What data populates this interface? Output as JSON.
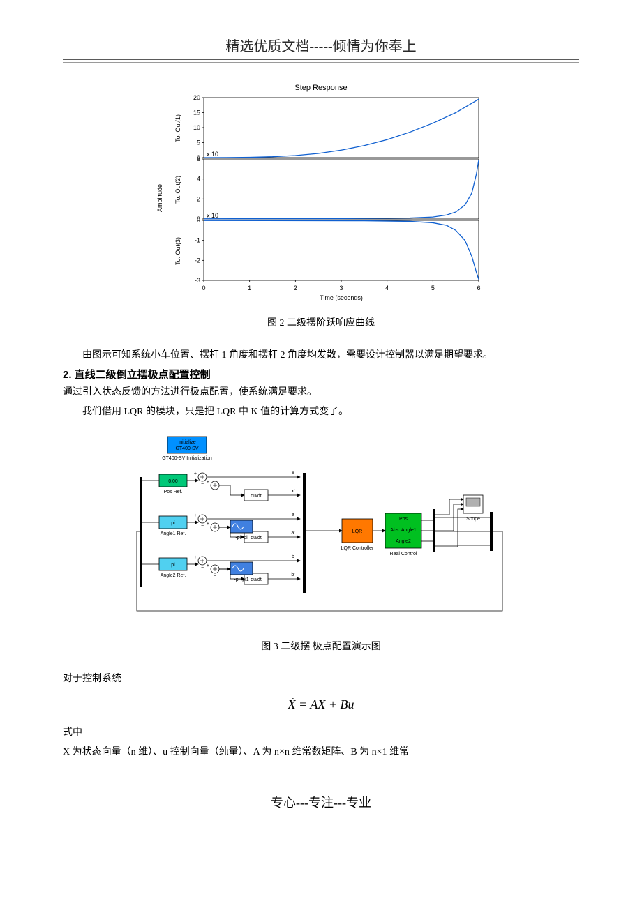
{
  "header": {
    "title": "精选优质文档-----倾情为你奉上"
  },
  "step_response": {
    "title": "Step Response",
    "xlabel": "Time (seconds)",
    "ylabel": "Amplitude",
    "xlim": [
      0,
      6
    ],
    "xticks": [
      0,
      1,
      2,
      3,
      4,
      5,
      6
    ],
    "line_color": "#1060d0",
    "axis_color": "#000000",
    "background_color": "#ffffff",
    "panels": [
      {
        "sublabel": "To: Out(1)",
        "ylim": [
          0,
          20
        ],
        "yticks": [
          0,
          5,
          10,
          15,
          20
        ],
        "exp_note": "x 10",
        "curve": [
          [
            0,
            0
          ],
          [
            0.5,
            0.02
          ],
          [
            1,
            0.1
          ],
          [
            1.5,
            0.3
          ],
          [
            2,
            0.7
          ],
          [
            2.5,
            1.4
          ],
          [
            3,
            2.5
          ],
          [
            3.5,
            4.0
          ],
          [
            4,
            6.0
          ],
          [
            4.5,
            8.5
          ],
          [
            5,
            11.5
          ],
          [
            5.5,
            15
          ],
          [
            6,
            19.5
          ]
        ]
      },
      {
        "sublabel": "To: Out(2)",
        "ylim": [
          0,
          6
        ],
        "yticks": [
          0,
          2,
          4,
          6
        ],
        "exp_note": "x 10",
        "curve": [
          [
            0,
            0.02
          ],
          [
            3.0,
            0.04
          ],
          [
            4.5,
            0.1
          ],
          [
            5.0,
            0.2
          ],
          [
            5.3,
            0.4
          ],
          [
            5.5,
            0.7
          ],
          [
            5.7,
            1.4
          ],
          [
            5.85,
            2.6
          ],
          [
            5.95,
            4.5
          ],
          [
            6,
            5.9
          ]
        ]
      },
      {
        "sublabel": "To: Out(3)",
        "ylim": [
          -3,
          0
        ],
        "yticks": [
          -3,
          -2,
          -1,
          0
        ],
        "curve": [
          [
            0,
            -0.01
          ],
          [
            3.5,
            -0.02
          ],
          [
            4.5,
            -0.05
          ],
          [
            5.0,
            -0.12
          ],
          [
            5.3,
            -0.25
          ],
          [
            5.5,
            -0.5
          ],
          [
            5.7,
            -1.0
          ],
          [
            5.85,
            -1.8
          ],
          [
            5.95,
            -2.6
          ],
          [
            6,
            -2.95
          ]
        ]
      }
    ]
  },
  "captions": {
    "fig2": "图 2 二级摆阶跃响应曲线",
    "fig3": "图 3 二级摆 极点配置演示图"
  },
  "paragraphs": {
    "p1": "由图示可知系统小车位置、摆杆 1 角度和摆杆 2 角度均发散，需要设计控制器以满足期望要求。",
    "section2": "2. 直线二级倒立摆极点配置控制",
    "p2": "通过引入状态反馈的方法进行极点配置，使系统满足要求。",
    "p3": "我们借用 LQR 的模块，只是把 LQR 中 K 值的计算方式变了。",
    "p4": "对于控制系统",
    "eq1": "Ẋ = AX + Bu",
    "p5": "式中",
    "p6": "X 为状态向量（n 维）、u 控制向量（纯量）、A 为 n×n 维常数矩阵、B 为 n×1 维常"
  },
  "simulink": {
    "background_color": "#ffffff",
    "border_color": "#000000",
    "wire_color": "#000000",
    "init_block": {
      "label1": "Initialize",
      "label2": "GT400-SV",
      "fill": "#0090ff",
      "caption": "GT400-SV Initialization"
    },
    "pos_ref": {
      "value": "0.00",
      "fill": "#00c878",
      "caption": "Pos Ref."
    },
    "angle1_ref": {
      "value": "pi",
      "fill": "#50d0f0",
      "caption": "Angle1 Ref."
    },
    "angle2_ref": {
      "value": "pi",
      "fill": "#50d0f0",
      "caption": "Angle2 Ref."
    },
    "deriv_label": "du/dt",
    "pi_block1_label": "-pi~pi",
    "pi_block2_label": "-pi~pi1",
    "signal_labels": [
      "x",
      "x'",
      "a",
      "a'",
      "b",
      "b'"
    ],
    "lqr": {
      "label": "LQR",
      "fill": "#ff7800",
      "caption": "LQR Controller"
    },
    "real_control": {
      "labels": [
        "Pos",
        "Abs. Angle1",
        "Angle2"
      ],
      "fill": "#00c020",
      "caption": "Real Control"
    },
    "scope_caption": "Scope",
    "sine_fill": "#4080e0"
  },
  "footer": {
    "text": "专心---专注---专业"
  }
}
